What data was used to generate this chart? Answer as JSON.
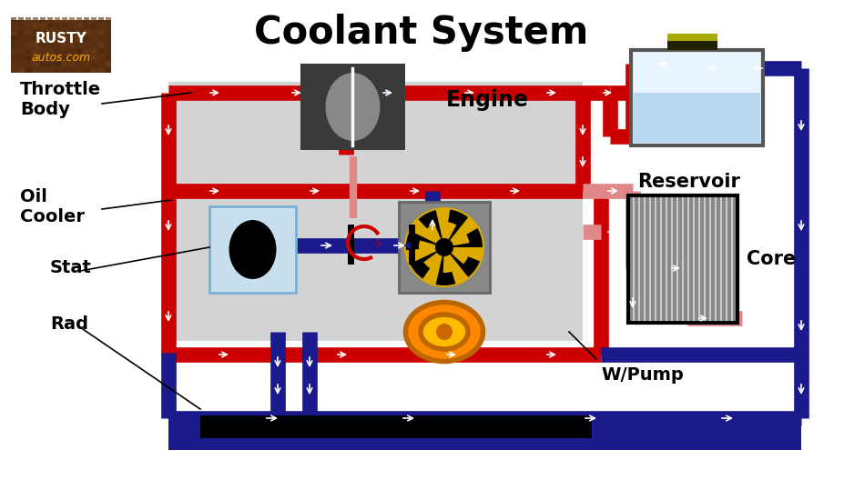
{
  "title": "Coolant System",
  "title_fontsize": 30,
  "bg_color": "#ffffff",
  "engine_bg": "#d3d3d3",
  "red": "#cc0000",
  "blue": "#1a1a8c",
  "light_red": "#e08888",
  "labels": {
    "throttle_body": "Throttle\nBody",
    "oil_cooler": "Oil\nCooler",
    "stat": "Stat",
    "rad": "Rad",
    "engine": "Engine",
    "reservoir": "Reservoir",
    "core": "Core",
    "wpump": "W/Pump"
  }
}
